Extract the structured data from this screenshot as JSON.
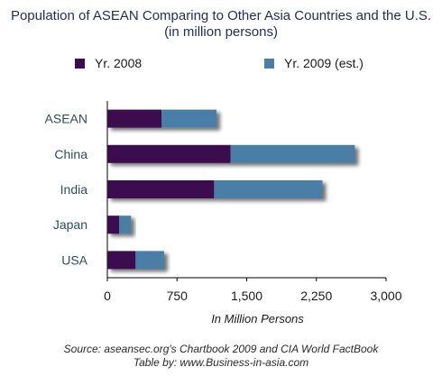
{
  "title_line1": "Population of ASEAN Comparing to Other Asia Countries and the U.S.",
  "title_line2": "(in million persons)",
  "source_line1": "Source: aseansec.org's Chartbook 2009 and CIA World FactBook",
  "source_line2": "Table by: www.Business-in-asia.com",
  "chart_data": {
    "type": "bar",
    "orientation": "horizontal",
    "stacked": true,
    "categories": [
      "ASEAN",
      "China",
      "India",
      "Japan",
      "USA"
    ],
    "series": [
      {
        "name": "Yr. 2008",
        "color": "#3a0d4f",
        "values": [
          584,
          1325,
          1149,
          128,
          304
        ]
      },
      {
        "name": "Yr. 2009 (est.)",
        "color": "#4a7ea6",
        "values": [
          591,
          1339,
          1166,
          127,
          307
        ]
      }
    ],
    "xlabel": "In Million Persons",
    "ylabel": "",
    "xlim": [
      0,
      3000
    ],
    "xticks": [
      "0",
      "750",
      "1,500",
      "2,250",
      "3,000"
    ],
    "grid": false,
    "legend_position": "top"
  }
}
